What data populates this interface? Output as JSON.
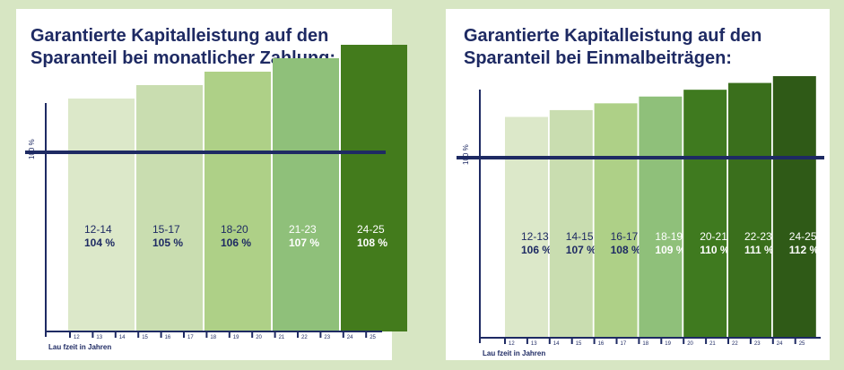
{
  "charts": [
    {
      "title": "Garantierte Kapitalleistung auf den\nSparanteil bei monatlicher Zahlung:",
      "y_reference_label": "100 %",
      "x_axis_label": "Lau fzeit in Jahren",
      "x_ticks": [
        "12",
        "13",
        "14",
        "15",
        "16",
        "17",
        "18",
        "19",
        "20",
        "21",
        "22",
        "23",
        "24",
        "25"
      ],
      "bars": [
        {
          "range": "12-14",
          "pct_label": "104 %",
          "value": 104,
          "color": "#dce8c9",
          "text_color": "#1e2a63"
        },
        {
          "range": "15-17",
          "pct_label": "105 %",
          "value": 105,
          "color": "#c9ddb0",
          "text_color": "#1e2a63"
        },
        {
          "range": "18-20",
          "pct_label": "106 %",
          "value": 106,
          "color": "#aed087",
          "text_color": "#1e2a63"
        },
        {
          "range": "21-23",
          "pct_label": "107 %",
          "value": 107,
          "color": "#8fc07a",
          "text_color": "#ffffff"
        },
        {
          "range": "24-25",
          "pct_label": "108 %",
          "value": 108,
          "color": "#437b1c",
          "text_color": "#ffffff"
        }
      ]
    },
    {
      "title": "Garantierte Kapitalleistung auf den\nSparanteil bei Einmalbeiträgen:",
      "y_reference_label": "100 %",
      "x_axis_label": "Lau fzeit in Jahren",
      "x_ticks": [
        "12",
        "13",
        "14",
        "15",
        "16",
        "17",
        "18",
        "19",
        "20",
        "21",
        "22",
        "23",
        "24",
        "25"
      ],
      "bars": [
        {
          "range": "12-13",
          "pct_label": "106 %",
          "value": 106,
          "color": "#dce8c9",
          "text_color": "#1e2a63"
        },
        {
          "range": "14-15",
          "pct_label": "107 %",
          "value": 107,
          "color": "#c9ddb0",
          "text_color": "#1e2a63"
        },
        {
          "range": "16-17",
          "pct_label": "108 %",
          "value": 108,
          "color": "#aed087",
          "text_color": "#1e2a63"
        },
        {
          "range": "18-19",
          "pct_label": "109 %",
          "value": 109,
          "color": "#8fc07a",
          "text_color": "#ffffff"
        },
        {
          "range": "20-21",
          "pct_label": "110 %",
          "value": 110,
          "color": "#3f7a1f",
          "text_color": "#ffffff"
        },
        {
          "range": "22-23",
          "pct_label": "111 %",
          "value": 111,
          "color": "#3a6f1c",
          "text_color": "#ffffff"
        },
        {
          "range": "24-25",
          "pct_label": "112 %",
          "value": 112,
          "color": "#2f5a17",
          "text_color": "#ffffff"
        }
      ]
    }
  ],
  "chart_data": [
    {
      "type": "bar",
      "title": "Garantierte Kapitalleistung auf den Sparanteil bei monatlicher Zahlung:",
      "xlabel": "Lau fzeit in Jahren",
      "ylabel": "",
      "categories": [
        "12-14",
        "15-17",
        "18-20",
        "21-23",
        "24-25"
      ],
      "values": [
        104,
        105,
        106,
        107,
        108
      ],
      "reference_line": 100,
      "grid": false
    },
    {
      "type": "bar",
      "title": "Garantierte Kapitalleistung auf den Sparanteil bei Einmalbeiträgen:",
      "xlabel": "Lau fzeit in Jahren",
      "ylabel": "",
      "categories": [
        "12-13",
        "14-15",
        "16-17",
        "18-19",
        "20-21",
        "22-23",
        "24-25"
      ],
      "values": [
        106,
        107,
        108,
        109,
        110,
        111,
        112
      ],
      "reference_line": 100,
      "grid": false
    }
  ]
}
